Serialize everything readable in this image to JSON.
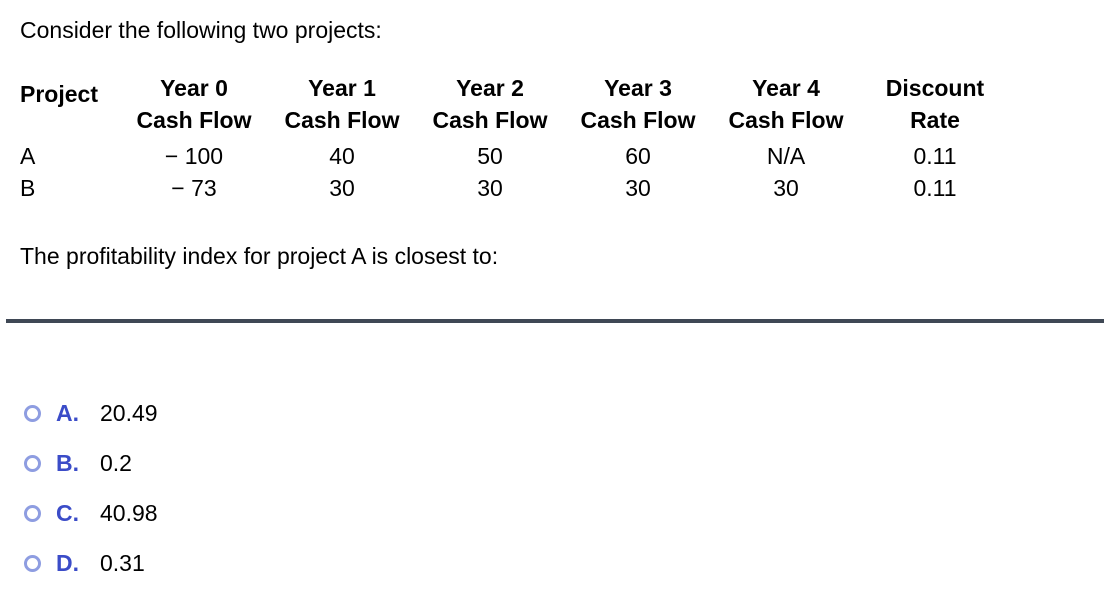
{
  "question": {
    "intro": "Consider the following two projects:",
    "prompt": "The profitability index for project A is closest to:"
  },
  "table": {
    "headers": [
      {
        "line1": "Project",
        "line2": ""
      },
      {
        "line1": "Year 0",
        "line2": "Cash Flow"
      },
      {
        "line1": "Year 1",
        "line2": "Cash Flow"
      },
      {
        "line1": "Year 2",
        "line2": "Cash Flow"
      },
      {
        "line1": "Year 3",
        "line2": "Cash Flow"
      },
      {
        "line1": "Year 4",
        "line2": "Cash Flow"
      },
      {
        "line1": "Discount",
        "line2": "Rate"
      }
    ],
    "rows": [
      {
        "project": "A",
        "cells": [
          "− 100",
          "40",
          "50",
          "60",
          "N/A",
          "0.11"
        ]
      },
      {
        "project": "B",
        "cells": [
          "− 73",
          "30",
          "30",
          "30",
          "30",
          "0.11"
        ]
      }
    ]
  },
  "options": [
    {
      "letter": "A.",
      "value": "20.49"
    },
    {
      "letter": "B.",
      "value": "0.2"
    },
    {
      "letter": "C.",
      "value": "40.98"
    },
    {
      "letter": "D.",
      "value": "0.31"
    }
  ],
  "colors": {
    "option_letter_blue": "#3b4cc8",
    "radio_ring": "#8e9de1",
    "divider": "#3f4855",
    "text": "#000000",
    "background": "#ffffff"
  }
}
